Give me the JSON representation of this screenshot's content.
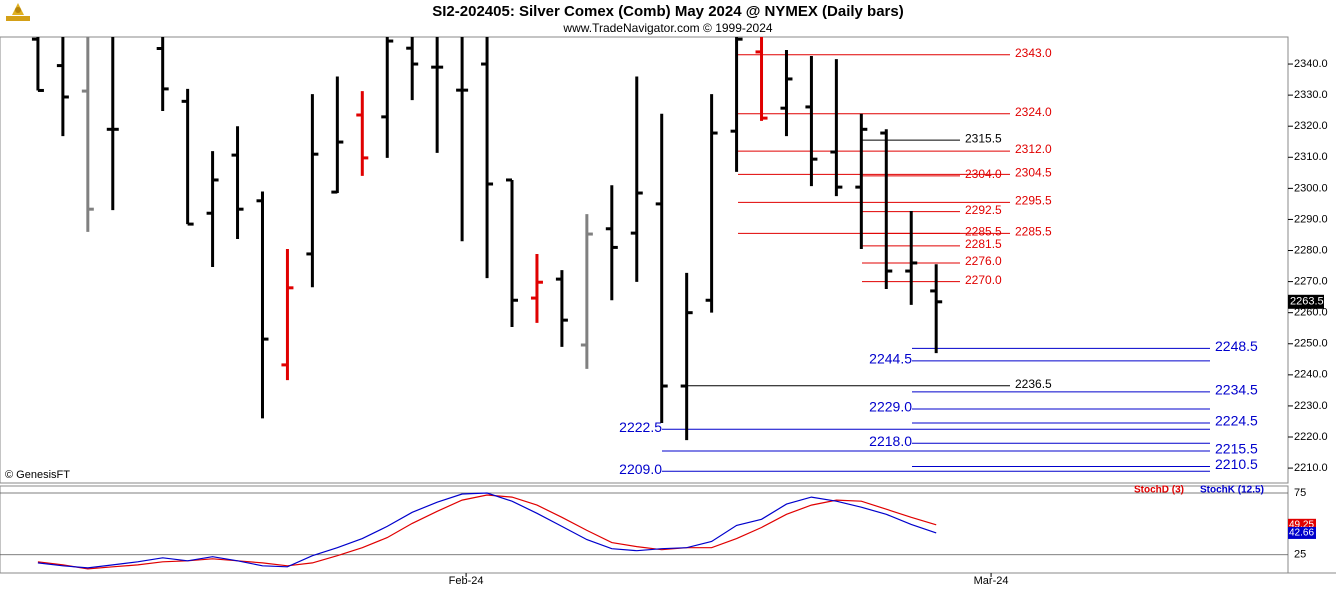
{
  "chart_data": {
    "type": "ohlc",
    "title": "SI2-202405:  Silver Comex (Comb) May 2024 @ NYMEX  (Daily bars)",
    "subtitle": "www.TradeNavigator.com © 1999-2024",
    "source": "© GenesisFT",
    "x": [
      0,
      1,
      2,
      3,
      4,
      5,
      6,
      7,
      8,
      9,
      10,
      11,
      12,
      13,
      14,
      15,
      16,
      17,
      18,
      19,
      20,
      21,
      22,
      23,
      24,
      25,
      26,
      27,
      28,
      29,
      30,
      31,
      32,
      33,
      34,
      35,
      36
    ],
    "open": [
      2348,
      2339.5,
      2331.3,
      2319,
      null,
      2345,
      2328,
      2292,
      2310.7,
      2296,
      2243.2,
      2278.9,
      2298.8,
      2323.6,
      2323,
      2345.1,
      2339,
      2331.6,
      2340,
      2302.7,
      2264.7,
      2270.8,
      2249.6,
      2287,
      2285.6,
      2295,
      2236.4,
      2264,
      2318.4,
      2343.9,
      2325.8,
      2326.2,
      2311.7,
      2300.4,
      2317.8,
      2273.4,
      2267
    ],
    "high": [
      2352,
      2352,
      2352,
      2352,
      null,
      2352,
      2332,
      2312,
      2320,
      2299,
      2280.5,
      2330.3,
      2336,
      2331.3,
      2352,
      2352,
      2352,
      2352,
      2352,
      2302.7,
      2278.9,
      2273.7,
      2291.7,
      2301,
      2336,
      2324,
      2272.8,
      2330.3,
      2352,
      2352,
      2344.5,
      2342.6,
      2341.6,
      2324,
      2319,
      2292.7,
      2275.6
    ],
    "low": [
      2331.5,
      2316.8,
      2286,
      2293,
      null,
      2324.9,
      2288.5,
      2274.7,
      2283.7,
      2226,
      2238.3,
      2268.2,
      2298.5,
      2304,
      2309.8,
      2328.4,
      2311.4,
      2283,
      2271.1,
      2255.4,
      2256.7,
      2249,
      2241.9,
      2264,
      2269.9,
      2224.5,
      2219,
      2260,
      2305.3,
      2321.7,
      2316.8,
      2300.7,
      2297.5,
      2280.5,
      2267.6,
      2262.5,
      2247
    ],
    "close": [
      2331.5,
      2329.4,
      2293.3,
      2319,
      null,
      2332,
      2288.5,
      2302.7,
      2293.3,
      2251.5,
      2268,
      2311,
      2314.9,
      2309.8,
      2347.4,
      2340,
      2339,
      2331.6,
      2301.4,
      2264,
      2269.8,
      2257.6,
      2285.3,
      2281,
      2298.5,
      2236.4,
      2260,
      2317.8,
      2348,
      2322.6,
      2335.2,
      2309.4,
      2300.4,
      2319,
      2273.4,
      2276,
      2263.5
    ],
    "colors": [
      "#000000",
      "#000000",
      "#808080",
      "#000000",
      null,
      "#000000",
      "#000000",
      "#000000",
      "#000000",
      "#000000",
      "#e00000",
      "#000000",
      "#000000",
      "#e00000",
      "#000000",
      "#000000",
      "#000000",
      "#000000",
      "#000000",
      "#000000",
      "#e00000",
      "#000000",
      "#808080",
      "#000000",
      "#000000",
      "#000000",
      "#000000",
      "#000000",
      "#000000",
      "#e00000",
      "#000000",
      "#000000",
      "#000000",
      "#000000",
      "#000000",
      "#000000",
      "#000000"
    ],
    "xlim": [
      -1.52,
      50.1
    ],
    "xticks": [
      {
        "value": 17.16,
        "label": "Feb-24"
      },
      {
        "value": 38.2,
        "label": "Mar-24"
      }
    ],
    "ylim": [
      2205.2,
      2348.7
    ],
    "yticks": [
      {
        "value": 2210,
        "label": "2210.0"
      },
      {
        "value": 2220,
        "label": "2220.0"
      },
      {
        "value": 2230,
        "label": "2230.0"
      },
      {
        "value": 2240,
        "label": "2240.0"
      },
      {
        "value": 2250,
        "label": "2250.0"
      },
      {
        "value": 2260,
        "label": "2260.0"
      },
      {
        "value": 2270,
        "label": "2270.0"
      },
      {
        "value": 2280,
        "label": "2280.0"
      },
      {
        "value": 2290,
        "label": "2290.0"
      },
      {
        "value": 2300,
        "label": "2300.0"
      },
      {
        "value": 2310,
        "label": "2310.0"
      },
      {
        "value": 2320,
        "label": "2320.0"
      },
      {
        "value": 2330,
        "label": "2330.0"
      },
      {
        "value": 2340,
        "label": "2340.0"
      }
    ],
    "levels": [
      {
        "value": 2343,
        "label": "2343.0",
        "color": "#e00000"
      },
      {
        "value": 2324,
        "label": "2324.0",
        "color": "#e00000"
      },
      {
        "value": 2315.5,
        "label": "2315.5",
        "color": "#000000"
      },
      {
        "value": 2312,
        "label": "2312.0",
        "color": "#e00000"
      },
      {
        "value": 2304.5,
        "label": "2304.5",
        "color": "#e00000"
      },
      {
        "value": 2304,
        "label": "2304.0",
        "color": "#e00000"
      },
      {
        "value": 2295.5,
        "label": "2295.5",
        "color": "#e00000"
      },
      {
        "value": 2292.5,
        "label": "2292.5",
        "color": "#e00000"
      },
      {
        "value": 2285.5,
        "label": "2285.5",
        "color": "#e00000"
      },
      {
        "value": 2285.5,
        "label": "2285.5",
        "color": "#e00000"
      },
      {
        "value": 2281.5,
        "label": "2281.5",
        "color": "#e00000"
      },
      {
        "value": 2276,
        "label": "2276.0",
        "color": "#e00000"
      },
      {
        "value": 2270,
        "label": "2270.0",
        "color": "#e00000"
      },
      {
        "value": 2248.5,
        "label": "2248.5",
        "color": "#0000cc"
      },
      {
        "value": 2244.5,
        "label": "2244.5",
        "color": "#0000cc"
      },
      {
        "value": 2236.5,
        "label": "2236.5",
        "color": "#000000"
      },
      {
        "value": 2234.5,
        "label": "2234.5",
        "color": "#0000cc"
      },
      {
        "value": 2229,
        "label": "2229.0",
        "color": "#0000cc"
      },
      {
        "value": 2224.5,
        "label": "2224.5",
        "color": "#0000cc"
      },
      {
        "value": 2222.5,
        "label": "2222.5",
        "color": "#0000cc"
      },
      {
        "value": 2218,
        "label": "2218.0",
        "color": "#0000cc"
      },
      {
        "value": 2215.5,
        "label": "2215.5",
        "color": "#0000cc"
      },
      {
        "value": 2210.5,
        "label": "2210.5",
        "color": "#0000cc"
      },
      {
        "value": 2209,
        "label": "2209.0",
        "color": "#0000cc"
      }
    ],
    "indicator": {
      "ylim": [
        10.2,
        80.7
      ],
      "yticks": [
        25,
        75
      ],
      "series": [
        {
          "name": "StochD (3)",
          "color": "#e00000",
          "values": [
            19.3,
            16.8,
            13.5,
            15.2,
            16.8,
            19.3,
            20.1,
            21.7,
            20.1,
            18.4,
            16,
            18.4,
            24.2,
            30.7,
            38.9,
            50.4,
            60.2,
            69.3,
            73.4,
            71.7,
            65.2,
            55.3,
            44.7,
            34.8,
            31.6,
            29.1,
            30.7,
            30.7,
            38.1,
            47.1,
            57.8,
            65.2,
            69.3,
            68.4,
            61.9,
            55.3,
            49.25
          ]
        },
        {
          "name": "StochK (12.5)",
          "color": "#0000cc",
          "values": [
            18.4,
            16,
            14.3,
            16.8,
            19.3,
            22.5,
            20.1,
            23.4,
            20.1,
            16,
            15.2,
            24.2,
            30.7,
            38.1,
            48,
            59.4,
            67.6,
            74.2,
            75,
            68.4,
            58.6,
            48,
            37.3,
            29.9,
            28.3,
            29.9,
            30.7,
            35.7,
            48.8,
            53.7,
            66,
            71.7,
            68.4,
            63.5,
            57.8,
            49.6,
            42.66
          ]
        }
      ]
    }
  }
}
